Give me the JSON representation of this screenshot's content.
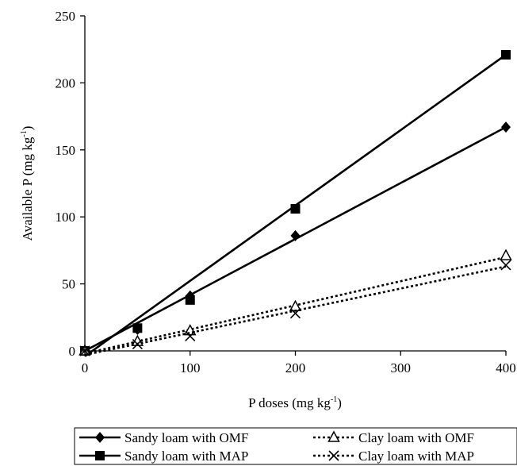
{
  "chart_data": {
    "type": "line",
    "xlabel": "P doses (mg kg",
    "xlabel_sup": "-1",
    "xlabel_end": ")",
    "ylabel": "Available P (mg kg",
    "ylabel_sup": "-1",
    "ylabel_end": ")",
    "xlim": [
      0,
      400
    ],
    "ylim": [
      0,
      250
    ],
    "xticks": [
      "0",
      "100",
      "200",
      "300",
      "400"
    ],
    "yticks": [
      "0",
      "50",
      "100",
      "150",
      "200",
      "250"
    ],
    "grid": false,
    "legend_position": "bottom",
    "series": [
      {
        "name": "Sandy loam with OMF",
        "marker": "diamond",
        "style": "solid",
        "x": [
          0,
          50,
          100,
          200,
          400
        ],
        "y": [
          0,
          16,
          41,
          86,
          167
        ],
        "fit": [
          [
            0,
            0
          ],
          [
            400,
            167
          ]
        ]
      },
      {
        "name": "Sandy loam with MAP",
        "marker": "square",
        "style": "solid",
        "x": [
          0,
          50,
          100,
          200,
          400
        ],
        "y": [
          0,
          17,
          38,
          106,
          221
        ],
        "fit": [
          [
            0,
            -4
          ],
          [
            400,
            221
          ]
        ]
      },
      {
        "name": "Clay loam with OMF",
        "marker": "triangle",
        "style": "dotted",
        "x": [
          0,
          50,
          100,
          200,
          400
        ],
        "y": [
          0,
          7,
          15,
          33,
          71
        ],
        "fit": [
          [
            0,
            -2
          ],
          [
            400,
            70
          ]
        ]
      },
      {
        "name": "Clay loam with MAP",
        "marker": "x",
        "style": "dotted",
        "x": [
          0,
          50,
          100,
          200,
          400
        ],
        "y": [
          0,
          5,
          11,
          28,
          64
        ],
        "fit": [
          [
            0,
            -3
          ],
          [
            400,
            63
          ]
        ]
      }
    ]
  }
}
